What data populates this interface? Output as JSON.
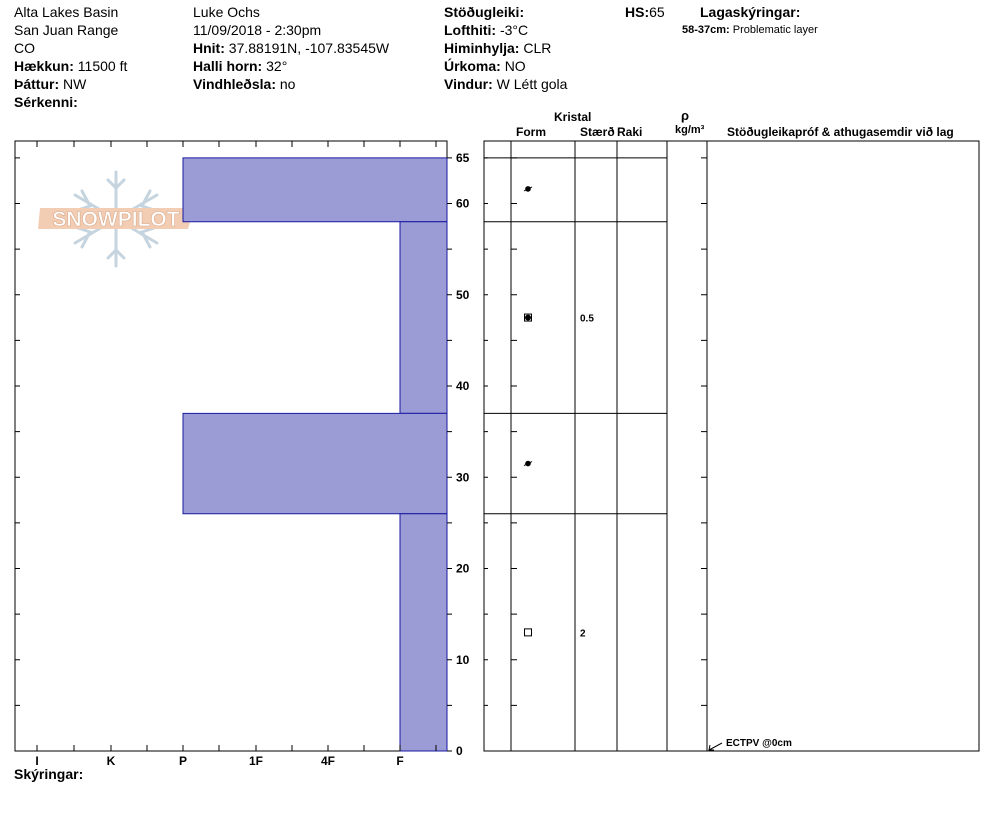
{
  "header": {
    "location": "Alta Lakes Basin",
    "range": "San Juan Range",
    "state": "CO",
    "elevation_label": "Hækkun:",
    "elevation_value": "11500 ft",
    "aspect_label": "Þáttur:",
    "aspect_value": "NW",
    "features_label": "Sérkenni:",
    "observer": "Luke Ochs",
    "datetime": "11/09/2018 - 2:30pm",
    "coords_label": "Hnit:",
    "coords_value": "37.88191N, -107.83545W",
    "slope_label": "Halli horn:",
    "slope_value": "32°",
    "wind_loading_label": "Vindhleðsla:",
    "wind_loading_value": "no",
    "stability_label": "Stöðugleiki:",
    "air_temp_label": "Lofthiti:",
    "air_temp_value": "-3°C",
    "sky_label": "Himinhylja:",
    "sky_value": "CLR",
    "precip_label": "Úrkoma:",
    "precip_value": "NO",
    "wind_label": "Vindur:",
    "wind_value": "W Létt gola",
    "hs_label": "HS:",
    "hs_value": "65",
    "legend_title": "Lagaskýringar:",
    "legend_range": "58-37cm:",
    "legend_text": "Problematic layer"
  },
  "watermark": "SNOWPILOT",
  "columns": {
    "crystal": "Kristal",
    "form": "Form",
    "size": "Stærð",
    "moisture": "Raki",
    "rho": "ρ",
    "density_unit": "kg/m³",
    "tests_header": "Stöðugleikapróf & athugasemdir við lag"
  },
  "footer": {
    "notes_label": "Skýringar:"
  },
  "test_result": {
    "text": "ECTPV @0cm",
    "depth": 0
  },
  "colors": {
    "hardness_fill": "#9b9bd6",
    "hardness_stroke": "#1a1aa0"
  },
  "chart_data": {
    "type": "bar",
    "orientation": "horizontal",
    "ylabel": "",
    "xlabel": "",
    "ylim": [
      0,
      67
    ],
    "y_ticks": [
      0,
      10,
      20,
      30,
      40,
      50,
      60,
      65
    ],
    "hardness_ticks": [
      "I",
      "K",
      "P",
      "1F",
      "4F",
      "F"
    ],
    "layers": [
      {
        "top": 65,
        "bottom": 58,
        "hardness": "P"
      },
      {
        "top": 58,
        "bottom": 37,
        "hardness": "F"
      },
      {
        "top": 37,
        "bottom": 26,
        "hardness": "P"
      },
      {
        "top": 26,
        "bottom": 0,
        "hardness": "F"
      }
    ],
    "crystals": [
      {
        "depth": 61.6,
        "form": "precip-particle",
        "size": ""
      },
      {
        "depth": 47.5,
        "form": "faceted-rounded",
        "size": "0.5"
      },
      {
        "depth": 31.5,
        "form": "precip-particle",
        "size": ""
      },
      {
        "depth": 13,
        "form": "faceted",
        "size": "2"
      }
    ]
  }
}
